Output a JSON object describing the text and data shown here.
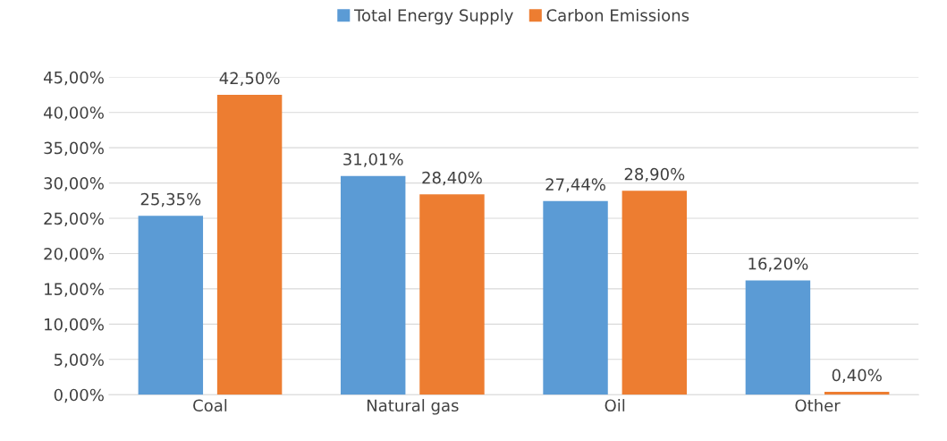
{
  "chart_data": {
    "type": "bar",
    "categories": [
      "Coal",
      "Natural gas",
      "Oil",
      "Other"
    ],
    "series": [
      {
        "name": "Total Energy Supply",
        "color": "#5b9bd5",
        "values": [
          25.35,
          31.01,
          27.44,
          16.2
        ],
        "value_labels": [
          "25,35%",
          "31,01%",
          "27,44%",
          "16,20%"
        ]
      },
      {
        "name": "Carbon Emissions",
        "color": "#ed7d31",
        "values": [
          42.5,
          28.4,
          28.9,
          0.4
        ],
        "value_labels": [
          "42,50%",
          "28,40%",
          "28,90%",
          "0,40%"
        ]
      }
    ],
    "ylim": [
      0,
      45
    ],
    "yticks": [
      {
        "value": 0,
        "label": "0,00%"
      },
      {
        "value": 5,
        "label": "5,00%"
      },
      {
        "value": 10,
        "label": "10,00%"
      },
      {
        "value": 15,
        "label": "15,00%"
      },
      {
        "value": 20,
        "label": "20,00%"
      },
      {
        "value": 25,
        "label": "25,00%"
      },
      {
        "value": 30,
        "label": "30,00%"
      },
      {
        "value": 35,
        "label": "35,00%"
      },
      {
        "value": 40,
        "label": "40,00%"
      },
      {
        "value": 45,
        "label": "45,00%"
      }
    ],
    "grid": "y",
    "legend": "top"
  }
}
